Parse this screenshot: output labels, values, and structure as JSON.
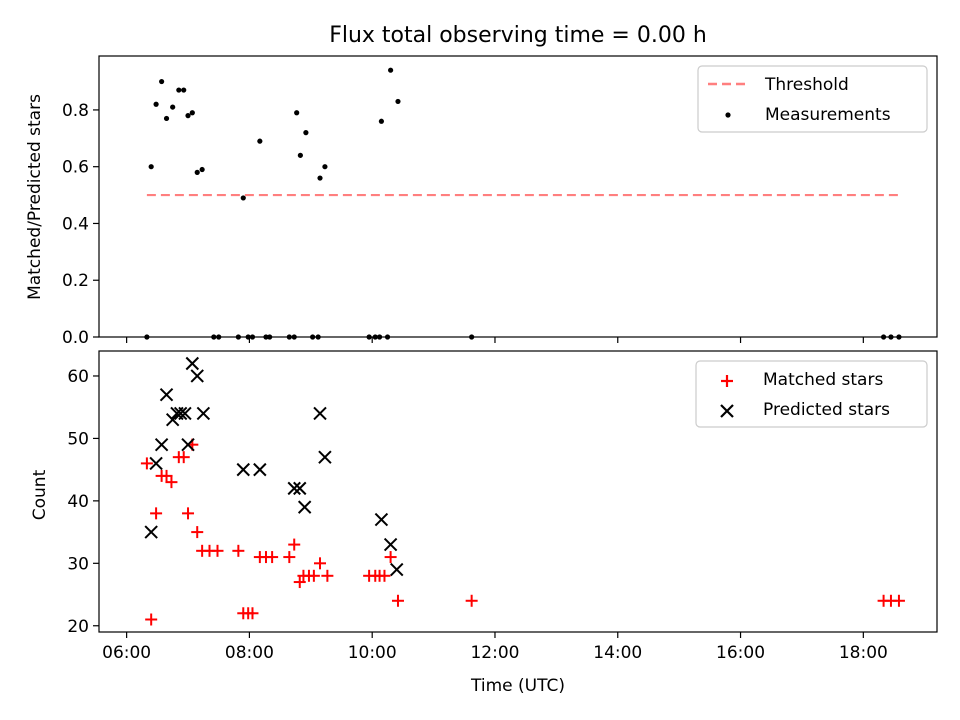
{
  "figure_title": "Flux total observing time = 0.00 h",
  "colors": {
    "threshold": "#ff7f7f",
    "measurement": "#000000",
    "matched": "#ff0000",
    "predicted": "#000000"
  },
  "chart_data": [
    {
      "type": "scatter",
      "title": "Flux total observing time = 0.00 h",
      "xlabel": "",
      "ylabel": "Matched/Predicted stars",
      "x_unit": "hours UTC (same time axis as lower panel)",
      "xlim": [
        5.55,
        19.2
      ],
      "ylim": [
        0.0,
        0.99
      ],
      "yticks": [
        0.0,
        0.2,
        0.4,
        0.6,
        0.8
      ],
      "ytick_labels": [
        "0.0",
        "0.2",
        "0.4",
        "0.6",
        "0.8"
      ],
      "legend": {
        "position": "upper right",
        "entries": [
          "Threshold",
          "Measurements"
        ]
      },
      "grid": false,
      "series": [
        {
          "name": "Threshold",
          "kind": "dashed-line",
          "x": [
            6.33,
            18.6
          ],
          "y": [
            0.5,
            0.5
          ]
        },
        {
          "name": "Measurements",
          "kind": "points",
          "points": [
            [
              6.33,
              0.0
            ],
            [
              6.4,
              0.6
            ],
            [
              6.48,
              0.82
            ],
            [
              6.57,
              0.9
            ],
            [
              6.65,
              0.77
            ],
            [
              6.75,
              0.81
            ],
            [
              6.85,
              0.87
            ],
            [
              6.93,
              0.87
            ],
            [
              7.0,
              0.78
            ],
            [
              7.07,
              0.79
            ],
            [
              7.15,
              0.58
            ],
            [
              7.23,
              0.59
            ],
            [
              7.42,
              0.0
            ],
            [
              7.5,
              0.0
            ],
            [
              7.82,
              0.0
            ],
            [
              7.9,
              0.49
            ],
            [
              7.98,
              0.0
            ],
            [
              8.05,
              0.0
            ],
            [
              8.17,
              0.69
            ],
            [
              8.27,
              0.0
            ],
            [
              8.33,
              0.0
            ],
            [
              8.65,
              0.0
            ],
            [
              8.73,
              0.0
            ],
            [
              8.77,
              0.79
            ],
            [
              8.83,
              0.64
            ],
            [
              8.92,
              0.72
            ],
            [
              9.03,
              0.0
            ],
            [
              9.12,
              0.0
            ],
            [
              9.15,
              0.56
            ],
            [
              9.23,
              0.6
            ],
            [
              9.95,
              0.0
            ],
            [
              10.05,
              0.0
            ],
            [
              10.12,
              0.0
            ],
            [
              10.15,
              0.76
            ],
            [
              10.25,
              0.0
            ],
            [
              10.3,
              0.94
            ],
            [
              10.42,
              0.83
            ],
            [
              11.62,
              0.0
            ],
            [
              18.33,
              0.0
            ],
            [
              18.45,
              0.0
            ],
            [
              18.58,
              0.0
            ]
          ]
        }
      ]
    },
    {
      "type": "scatter",
      "xlabel": "Time (UTC)",
      "ylabel": "Count",
      "x_unit": "hours UTC",
      "xlim": [
        5.55,
        19.2
      ],
      "ylim": [
        19.0,
        64.0
      ],
      "xticks": [
        6,
        8,
        10,
        12,
        14,
        16,
        18
      ],
      "xtick_labels": [
        "06:00",
        "08:00",
        "10:00",
        "12:00",
        "14:00",
        "16:00",
        "18:00"
      ],
      "yticks": [
        20,
        30,
        40,
        50,
        60
      ],
      "ytick_labels": [
        "20",
        "30",
        "40",
        "50",
        "60"
      ],
      "legend": {
        "position": "upper right",
        "entries": [
          "Matched stars",
          "Predicted stars"
        ]
      },
      "grid": false,
      "series": [
        {
          "name": "Matched stars",
          "marker": "+",
          "points": [
            [
              6.33,
              46
            ],
            [
              6.4,
              21
            ],
            [
              6.48,
              38
            ],
            [
              6.57,
              44
            ],
            [
              6.65,
              44
            ],
            [
              6.73,
              43
            ],
            [
              6.85,
              47
            ],
            [
              6.93,
              47
            ],
            [
              7.0,
              38
            ],
            [
              7.07,
              49
            ],
            [
              7.15,
              35
            ],
            [
              7.23,
              32
            ],
            [
              7.35,
              32
            ],
            [
              7.48,
              32
            ],
            [
              7.82,
              32
            ],
            [
              7.9,
              22
            ],
            [
              7.98,
              22
            ],
            [
              8.05,
              22
            ],
            [
              8.17,
              31
            ],
            [
              8.27,
              31
            ],
            [
              8.37,
              31
            ],
            [
              8.65,
              31
            ],
            [
              8.73,
              33
            ],
            [
              8.82,
              27
            ],
            [
              8.88,
              28
            ],
            [
              8.97,
              28
            ],
            [
              9.05,
              28
            ],
            [
              9.15,
              30
            ],
            [
              9.27,
              28
            ],
            [
              9.95,
              28
            ],
            [
              10.05,
              28
            ],
            [
              10.12,
              28
            ],
            [
              10.2,
              28
            ],
            [
              10.3,
              31
            ],
            [
              10.42,
              24
            ],
            [
              11.62,
              24
            ],
            [
              18.33,
              24
            ],
            [
              18.45,
              24
            ],
            [
              18.58,
              24
            ]
          ]
        },
        {
          "name": "Predicted stars",
          "marker": "x",
          "points": [
            [
              6.4,
              35
            ],
            [
              6.48,
              46
            ],
            [
              6.57,
              49
            ],
            [
              6.65,
              57
            ],
            [
              6.75,
              53
            ],
            [
              6.82,
              54
            ],
            [
              6.88,
              54
            ],
            [
              6.95,
              54
            ],
            [
              7.0,
              49
            ],
            [
              7.07,
              62
            ],
            [
              7.15,
              60
            ],
            [
              7.25,
              54
            ],
            [
              7.9,
              45
            ],
            [
              8.17,
              45
            ],
            [
              8.73,
              42
            ],
            [
              8.82,
              42
            ],
            [
              8.9,
              39
            ],
            [
              9.15,
              54
            ],
            [
              9.23,
              47
            ],
            [
              10.15,
              37
            ],
            [
              10.3,
              33
            ],
            [
              10.4,
              29
            ]
          ]
        }
      ]
    }
  ]
}
